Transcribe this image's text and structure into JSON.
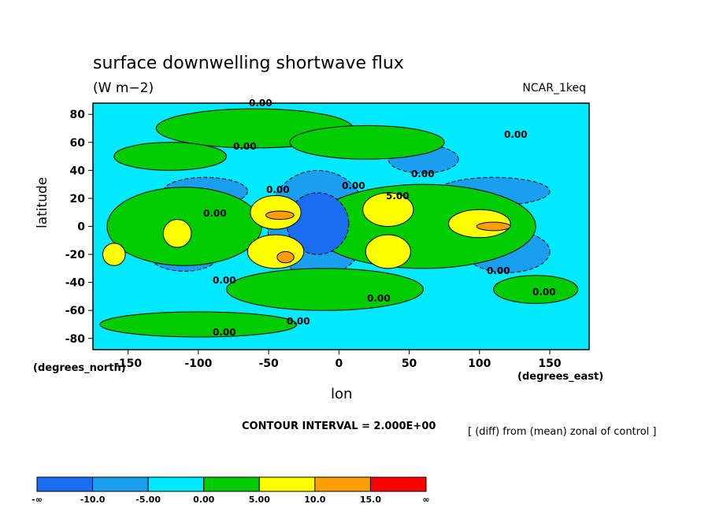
{
  "chart_data": {
    "type": "heatmap",
    "title": "surface downwelling shortwave flux",
    "units": "(W m−2)",
    "model": "NCAR_1keq",
    "xlabel": "lon",
    "ylabel": "latitude",
    "x_unit_label": "(degrees_east)",
    "y_unit_label": "(degrees_north)",
    "xlim": [
      -175,
      178
    ],
    "ylim": [
      -88,
      88
    ],
    "x_ticks": [
      -150,
      -100,
      -50,
      0,
      50,
      100,
      150
    ],
    "y_ticks": [
      80,
      60,
      40,
      20,
      0,
      -20,
      -40,
      -60,
      -80
    ],
    "contour_interval": "CONTOUR INTERVAL = 2.000E+00",
    "note": "[ (diff) from (mean) zonal of control ]",
    "contour_labels": [
      "0.00",
      "0.00",
      "0.00",
      "0.00",
      "0.00",
      "0.00",
      "0.00",
      "0.00",
      "0.00",
      "0.00",
      "0.00",
      "0.00",
      "0.00",
      "5.00"
    ],
    "colorbar": {
      "levels": [
        "-∞",
        "-10.0",
        "-5.00",
        "0.00",
        "5.00",
        "10.0",
        "15.0",
        "∞"
      ],
      "colors": [
        "#1a6cf0",
        "#1a9ff0",
        "#00eaff",
        "#00cc00",
        "#ffff00",
        "#ff9e00",
        "#ff0000"
      ]
    },
    "regions": [
      {
        "level": -2,
        "lon": -15,
        "lat": 2,
        "rlon": 22,
        "rlat": 22
      },
      {
        "level": -1,
        "lon": -15,
        "lat": 2,
        "rlon": 36,
        "rlat": 38
      },
      {
        "level": -1,
        "lon": -95,
        "lat": 25,
        "rlon": 30,
        "rlat": 10
      },
      {
        "level": -1,
        "lon": 110,
        "lat": 25,
        "rlon": 40,
        "rlat": 10
      },
      {
        "level": -1,
        "lon": -110,
        "lat": -20,
        "rlon": 25,
        "rlat": 12
      },
      {
        "level": -1,
        "lon": 120,
        "lat": -18,
        "rlon": 30,
        "rlat": 15
      },
      {
        "level": -1,
        "lon": 60,
        "lat": 48,
        "rlon": 25,
        "rlat": 10
      },
      {
        "level": 1,
        "lon": -60,
        "lat": 70,
        "rlon": 70,
        "rlat": 14
      },
      {
        "level": 1,
        "lon": 20,
        "lat": 60,
        "rlon": 55,
        "rlat": 12
      },
      {
        "level": 1,
        "lon": 60,
        "lat": 0,
        "rlon": 80,
        "rlat": 30
      },
      {
        "level": 1,
        "lon": -110,
        "lat": 0,
        "rlon": 55,
        "rlat": 28
      },
      {
        "level": 1,
        "lon": -10,
        "lat": -45,
        "rlon": 70,
        "rlat": 15
      },
      {
        "level": 1,
        "lon": -100,
        "lat": -70,
        "rlon": 70,
        "rlat": 9
      },
      {
        "level": 1,
        "lon": 140,
        "lat": -45,
        "rlon": 30,
        "rlat": 10
      },
      {
        "level": 1,
        "lon": -120,
        "lat": 50,
        "rlon": 40,
        "rlat": 10
      },
      {
        "level": 2,
        "lon": -45,
        "lat": 10,
        "rlon": 18,
        "rlat": 12
      },
      {
        "level": 2,
        "lon": -45,
        "lat": -18,
        "rlon": 20,
        "rlat": 12
      },
      {
        "level": 2,
        "lon": 35,
        "lat": 12,
        "rlon": 18,
        "rlat": 12
      },
      {
        "level": 2,
        "lon": 35,
        "lat": -18,
        "rlon": 16,
        "rlat": 12
      },
      {
        "level": 2,
        "lon": 100,
        "lat": 2,
        "rlon": 22,
        "rlat": 10
      },
      {
        "level": 2,
        "lon": -115,
        "lat": -5,
        "rlon": 10,
        "rlat": 10
      },
      {
        "level": 2,
        "lon": -160,
        "lat": -20,
        "rlon": 8,
        "rlat": 8
      },
      {
        "level": 3,
        "lon": -42,
        "lat": 8,
        "rlon": 10,
        "rlat": 3
      },
      {
        "level": 3,
        "lon": -38,
        "lat": -22,
        "rlon": 6,
        "rlat": 4
      },
      {
        "level": 3,
        "lon": 110,
        "lat": 0,
        "rlon": 12,
        "rlat": 3
      }
    ]
  }
}
